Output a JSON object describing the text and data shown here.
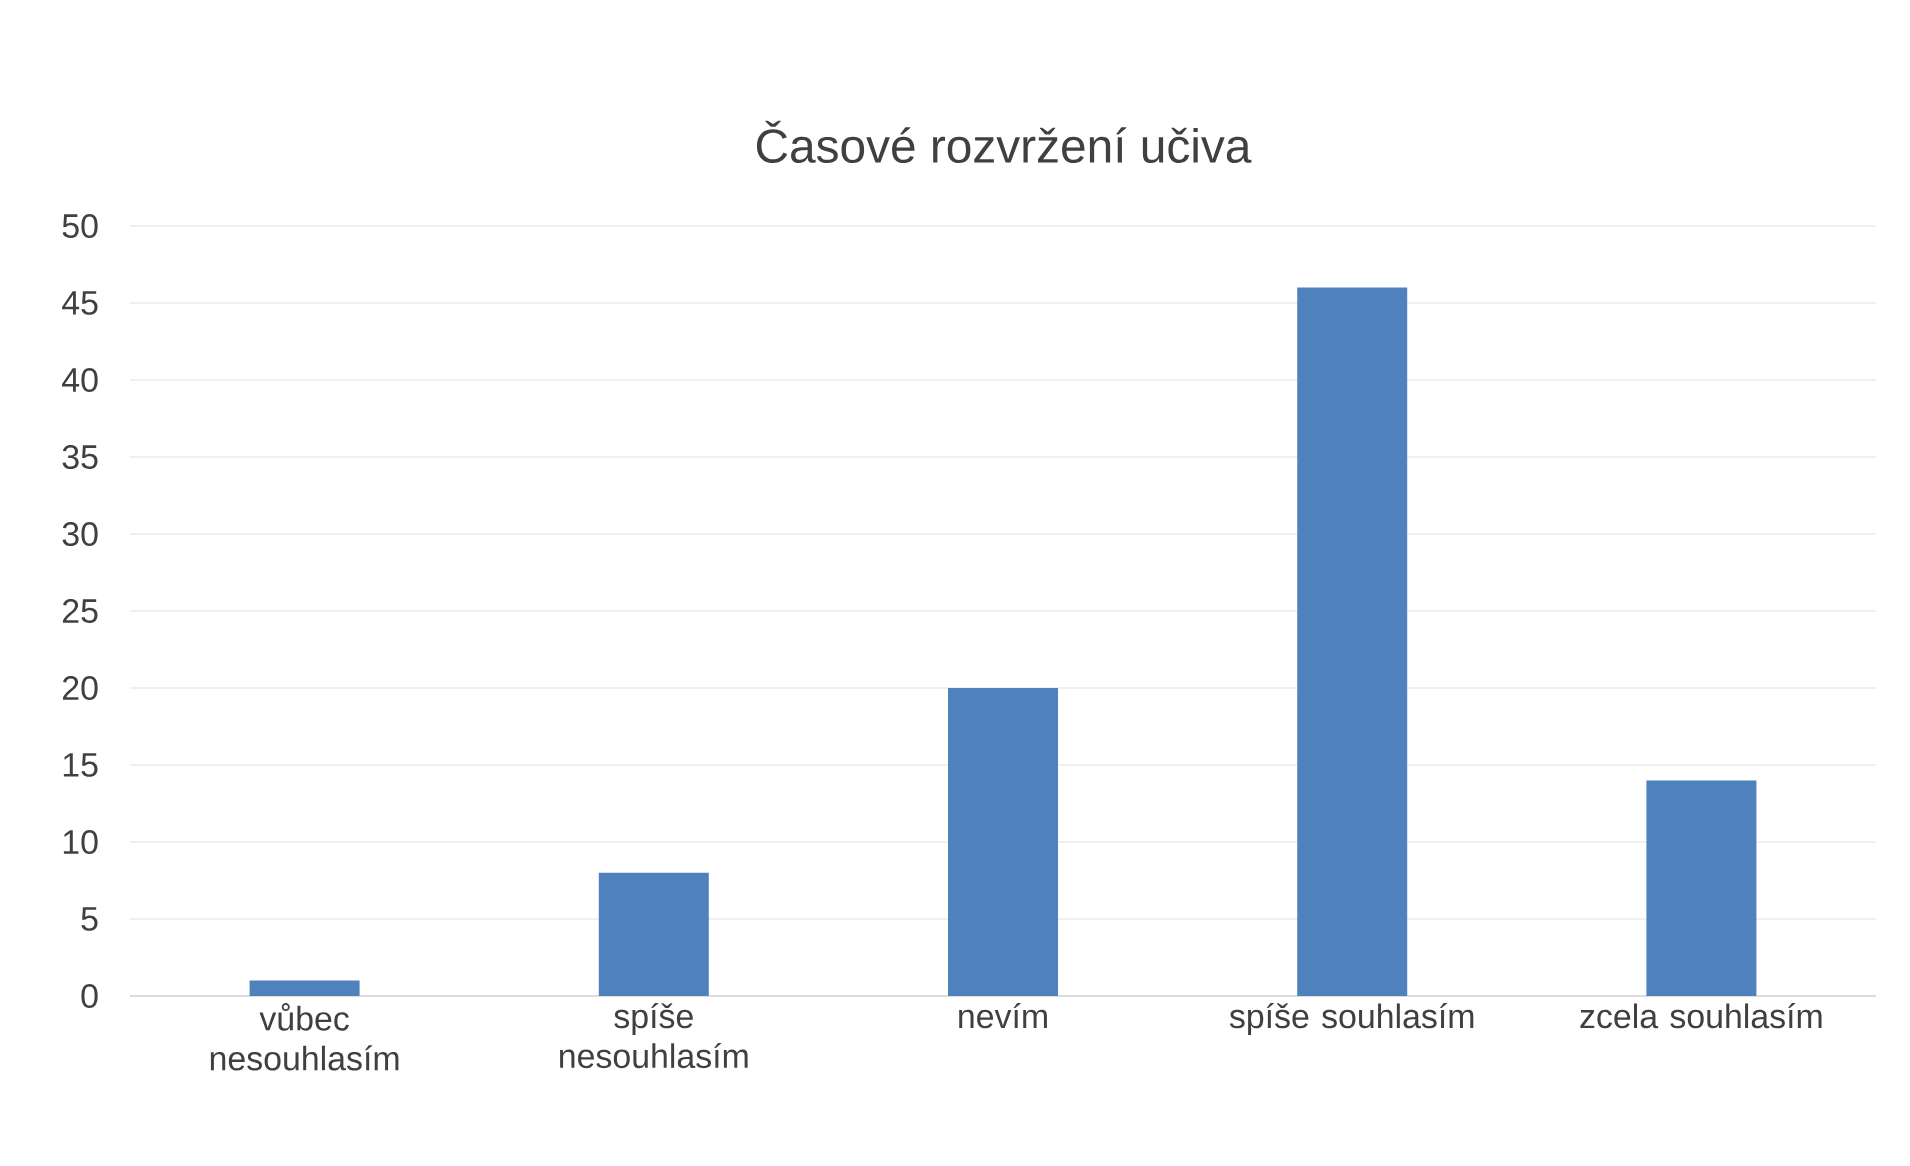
{
  "chart_data": {
    "type": "bar",
    "title": "Časové rozvržení učiva",
    "categories": [
      "vůbec nesouhlasím",
      "spíše nesouhlasím",
      "nevím",
      "spíše souhlasím",
      "zcela souhlasím"
    ],
    "values": [
      1,
      8,
      20,
      46,
      14
    ],
    "color": "#4f81bd",
    "ylim": [
      0,
      50
    ],
    "yticks": [
      0,
      5,
      10,
      15,
      20,
      25,
      30,
      35,
      40,
      45,
      50
    ],
    "grid": "y"
  }
}
